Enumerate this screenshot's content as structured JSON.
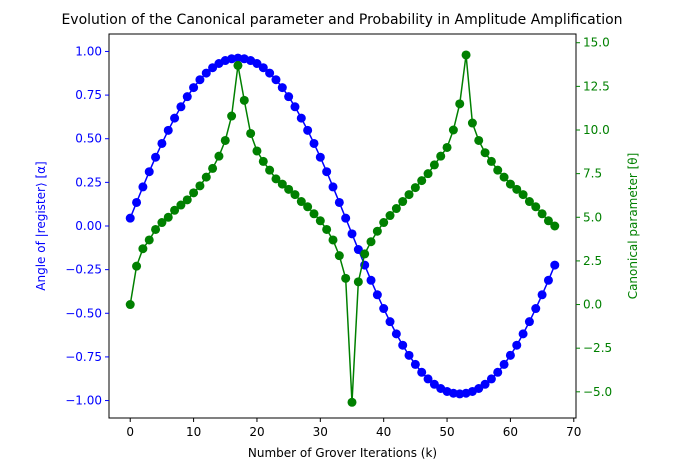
{
  "chart_data": {
    "type": "line",
    "title": "Evolution of the Canonical parameter and Probability in Amplitude Amplification",
    "xlabel": "Number of Grover Iterations (k)",
    "ylabel_left": "Angle of |register⟩ [α]",
    "ylabel_right": "Canonical parameter [θ]",
    "xlim": [
      -3.35,
      70.35
    ],
    "ylim_left": [
      -1.1,
      1.1
    ],
    "ylim_right": [
      -6.5,
      15.5
    ],
    "xticks": [
      0,
      10,
      20,
      30,
      40,
      50,
      60,
      70
    ],
    "xtick_labels": [
      "0",
      "10",
      "20",
      "30",
      "40",
      "50",
      "60",
      "70"
    ],
    "yticks_left": [
      -1.0,
      -0.75,
      -0.5,
      -0.25,
      0.0,
      0.25,
      0.5,
      0.75,
      1.0
    ],
    "ytick_labels_left": [
      "−1.00",
      "−0.75",
      "−0.50",
      "−0.25",
      "0.00",
      "0.25",
      "0.50",
      "0.75",
      "1.00"
    ],
    "yticks_right": [
      -5.0,
      -2.5,
      0.0,
      2.5,
      5.0,
      7.5,
      10.0,
      12.5,
      15.0
    ],
    "ytick_labels_right": [
      "−5.0",
      "−2.5",
      "0.0",
      "2.5",
      "5.0",
      "7.5",
      "10.0",
      "12.5",
      "15.0"
    ],
    "colors": {
      "left_axis": "#0000ff",
      "right_axis": "#008000",
      "text": "#000000"
    },
    "series": [
      {
        "axis": "left",
        "color": "#0000ff",
        "x": [
          0,
          1,
          2,
          3,
          4,
          5,
          6,
          7,
          8,
          9,
          10,
          11,
          12,
          13,
          14,
          15,
          16,
          17,
          18,
          19,
          20,
          21,
          22,
          23,
          24,
          25,
          26,
          27,
          28,
          29,
          30,
          31,
          32,
          33,
          34,
          35,
          36,
          37,
          38,
          39,
          40,
          41,
          42,
          43,
          44,
          45,
          46,
          47,
          48,
          49,
          50,
          51,
          52,
          53,
          54,
          55,
          56,
          57,
          58,
          59,
          60,
          61,
          62,
          63,
          64,
          65,
          66,
          67
        ],
        "values": [
          0.045,
          0.135,
          0.224,
          0.311,
          0.394,
          0.473,
          0.548,
          0.618,
          0.683,
          0.741,
          0.793,
          0.838,
          0.876,
          0.907,
          0.931,
          0.948,
          0.958,
          0.962,
          0.958,
          0.948,
          0.931,
          0.907,
          0.876,
          0.838,
          0.793,
          0.741,
          0.683,
          0.618,
          0.548,
          0.473,
          0.394,
          0.311,
          0.224,
          0.135,
          0.045,
          -0.045,
          -0.135,
          -0.224,
          -0.311,
          -0.394,
          -0.473,
          -0.548,
          -0.618,
          -0.683,
          -0.741,
          -0.793,
          -0.838,
          -0.876,
          -0.907,
          -0.931,
          -0.948,
          -0.958,
          -0.962,
          -0.958,
          -0.948,
          -0.931,
          -0.907,
          -0.876,
          -0.838,
          -0.793,
          -0.741,
          -0.683,
          -0.618,
          -0.548,
          -0.473,
          -0.394,
          -0.311,
          -0.224
        ]
      },
      {
        "axis": "right",
        "color": "#008000",
        "x": [
          0,
          1,
          2,
          3,
          4,
          5,
          6,
          7,
          8,
          9,
          10,
          11,
          12,
          13,
          14,
          15,
          16,
          17,
          18,
          19,
          20,
          21,
          22,
          23,
          24,
          25,
          26,
          27,
          28,
          29,
          30,
          31,
          32,
          33,
          34,
          35,
          36,
          37,
          38,
          39,
          40,
          41,
          42,
          43,
          44,
          45,
          46,
          47,
          48,
          49,
          50,
          51,
          52,
          53,
          54,
          55,
          56,
          57,
          58,
          59,
          60,
          61,
          62,
          63,
          64,
          65,
          66,
          67
        ],
        "values": [
          0.0,
          2.2,
          3.2,
          3.7,
          4.3,
          4.7,
          5.0,
          5.4,
          5.7,
          6.0,
          6.4,
          6.8,
          7.3,
          7.8,
          8.5,
          9.4,
          10.8,
          13.7,
          11.7,
          9.8,
          8.8,
          8.2,
          7.7,
          7.2,
          6.9,
          6.6,
          6.3,
          5.9,
          5.6,
          5.2,
          4.8,
          4.3,
          3.7,
          2.8,
          1.5,
          -5.6,
          1.3,
          2.9,
          3.6,
          4.2,
          4.7,
          5.1,
          5.5,
          5.9,
          6.3,
          6.7,
          7.1,
          7.5,
          8.0,
          8.5,
          9.0,
          10.0,
          11.5,
          14.3,
          10.4,
          9.4,
          8.7,
          8.2,
          7.7,
          7.3,
          6.9,
          6.6,
          6.3,
          5.9,
          5.6,
          5.2,
          4.8,
          4.5
        ]
      }
    ]
  }
}
